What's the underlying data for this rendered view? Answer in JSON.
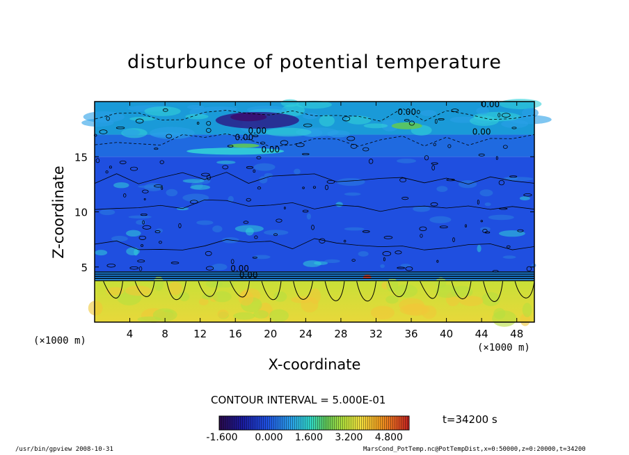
{
  "chart_data": {
    "type": "heatmap",
    "title": "disturbunce of potential temperature",
    "xlabel": "X-coordinate",
    "ylabel": "Z-coordinate",
    "x_unit_left": "(×1000 m)",
    "x_unit_right": "(×1000 m)",
    "xlim": [
      0,
      50
    ],
    "ylim": [
      0,
      20
    ],
    "x_ticks": [
      4,
      8,
      12,
      16,
      20,
      24,
      28,
      32,
      36,
      40,
      44,
      48
    ],
    "y_ticks": [
      5,
      10,
      15
    ],
    "contour_interval": "CONTOUR INTERVAL = 5.000E-01",
    "contour_labels": [
      "0.00",
      "0.00",
      "0.00",
      "0.00",
      "0.00",
      "0.00",
      "0.00",
      "0.00"
    ],
    "colorbar_min": -1.6,
    "colorbar_max": 6.0,
    "colorbar_ticks": [
      "-1.600",
      "0.000",
      "1.600",
      "3.200",
      "4.800"
    ],
    "colors": {
      "low": "#1a2a9c",
      "mid_low": "#1f4fe0",
      "zero": "#2aa0e8",
      "cyan": "#32d0d8",
      "green": "#5ec85a",
      "yellow": "#d8e23a",
      "orange": "#f0a020",
      "high": "#d83a20"
    },
    "bands": [
      {
        "z_from": 0.0,
        "z_to": 3.8,
        "level": "positive",
        "approx_value": 3.0
      },
      {
        "z_from": 3.8,
        "z_to": 4.6,
        "level": "transition",
        "approx_value": 0.5
      },
      {
        "z_from": 4.6,
        "z_to": 15.0,
        "level": "negative",
        "approx_value": -0.5
      },
      {
        "z_from": 15.0,
        "z_to": 17.0,
        "level": "near-zero",
        "approx_value": 0.0
      },
      {
        "z_from": 17.0,
        "z_to": 20.0,
        "level": "mixed",
        "approx_value": -0.3
      }
    ]
  },
  "time_label": "t=34200 s",
  "footer": {
    "program": "/usr/bin/gpview   2008-10-31",
    "description": "MarsCond_PotTemp.nc@PotTempDist,x=0:50000,z=0:20000,t=34200"
  }
}
